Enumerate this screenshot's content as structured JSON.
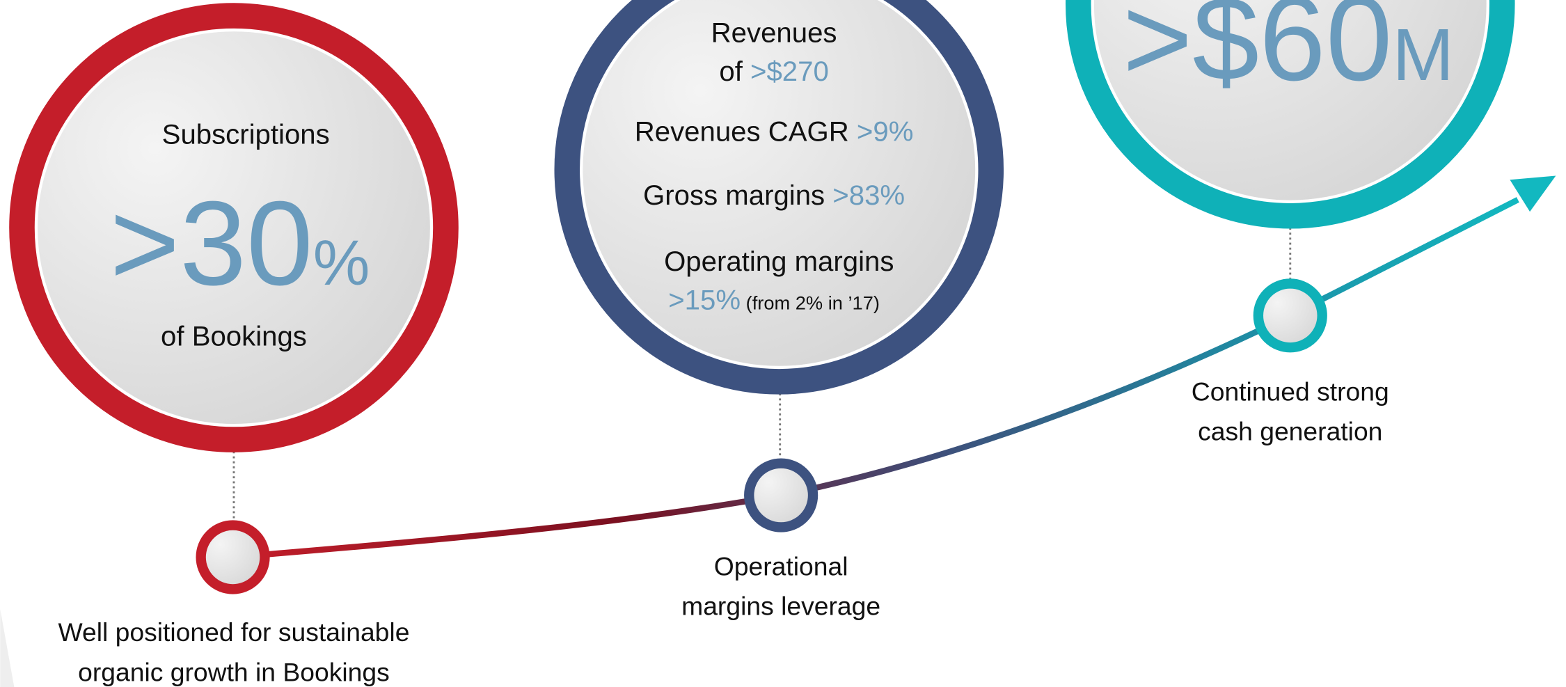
{
  "milestones": [
    {
      "circle": {
        "heading": "Subscriptions",
        "big": ">30",
        "unit": "%",
        "footer": "of Bookings"
      },
      "caption": [
        "Well positioned for sustainable",
        "organic growth in Bookings"
      ]
    },
    {
      "circle": {
        "lines": [
          [
            {
              "text": "Revenues"
            }
          ],
          [
            {
              "text": "of "
            },
            {
              "text": ">$270",
              "accent": true
            }
          ],
          [
            {
              "text": "Revenues CAGR "
            },
            {
              "text": ">9%",
              "accent": true
            }
          ],
          [
            {
              "text": "Gross margins "
            },
            {
              "text": ">83%",
              "accent": true
            }
          ],
          [
            {
              "text": "Operating margins"
            }
          ],
          [
            {
              "text": ">15%",
              "accent": true
            },
            {
              "text": " (from 2% in ’17)",
              "small": true
            }
          ]
        ]
      },
      "caption": [
        "Operational",
        "margins leverage"
      ]
    },
    {
      "circle": {
        "big": ">$60",
        "unit": "M"
      },
      "caption": [
        "Continued strong",
        "cash generation"
      ]
    }
  ]
}
